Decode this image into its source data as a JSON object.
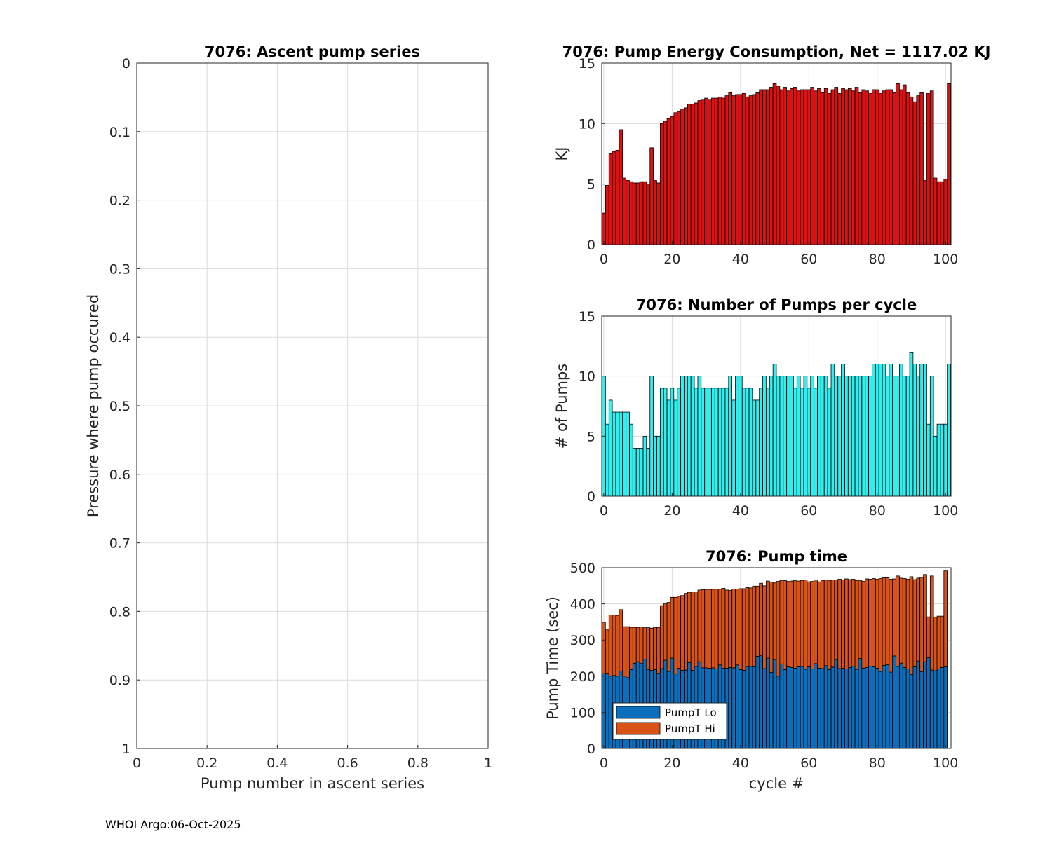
{
  "footer": "WHOI Argo:06-Oct-2025",
  "chart_data": [
    {
      "id": "ascent",
      "type": "line",
      "title": "7076: Ascent pump series",
      "xlabel": "Pump number in ascent series",
      "ylabel": "Pressure where pump occured",
      "xlim": [
        0,
        1
      ],
      "ylim": [
        0,
        1
      ],
      "yreversed": true,
      "xticks": [
        "0",
        "0.2",
        "0.4",
        "0.6",
        "0.8",
        "1"
      ],
      "yticks": [
        "0",
        "0.1",
        "0.2",
        "0.3",
        "0.4",
        "0.5",
        "0.6",
        "0.7",
        "0.8",
        "0.9",
        "1"
      ],
      "grid": true,
      "series": []
    },
    {
      "id": "energy",
      "type": "bar",
      "title": "7076: Pump Energy Consumption,  Net = 1117.02 KJ",
      "xlabel": "",
      "ylabel": "KJ",
      "xlim": [
        -0.6,
        101.6
      ],
      "ylim": [
        0,
        15
      ],
      "xticks": [
        "0",
        "20",
        "40",
        "60",
        "80",
        "100"
      ],
      "yticks": [
        "0",
        "5",
        "10",
        "15"
      ],
      "color": "#dd1111",
      "grid": true,
      "x_start": 0,
      "values": [
        2.6,
        4.9,
        7.5,
        7.7,
        7.8,
        9.5,
        5.5,
        5.3,
        5.2,
        5.1,
        5.1,
        5.2,
        5.2,
        5.0,
        8.0,
        5.3,
        5.1,
        10.0,
        10.2,
        10.4,
        10.6,
        10.9,
        11.0,
        11.2,
        11.3,
        11.6,
        11.6,
        11.7,
        11.9,
        12.0,
        12.1,
        12.0,
        12.1,
        12.1,
        12.2,
        12.1,
        12.3,
        12.6,
        12.3,
        12.4,
        12.4,
        12.5,
        12.2,
        12.3,
        12.4,
        12.6,
        12.8,
        12.8,
        12.8,
        13.0,
        13.3,
        13.1,
        12.8,
        13.0,
        12.7,
        12.9,
        13.0,
        12.7,
        12.8,
        12.8,
        12.8,
        13.0,
        12.7,
        12.9,
        12.6,
        12.9,
        12.5,
        12.8,
        13.0,
        12.5,
        12.9,
        12.8,
        12.9,
        12.7,
        13.0,
        12.6,
        12.8,
        12.7,
        12.5,
        12.8,
        12.8,
        12.5,
        12.7,
        12.8,
        12.8,
        12.6,
        13.3,
        12.8,
        13.2,
        12.6,
        12.2,
        11.8,
        12.3,
        12.6,
        5.3,
        12.5,
        12.7,
        5.5,
        5.2,
        5.2,
        5.4,
        13.3
      ]
    },
    {
      "id": "pumps",
      "type": "bar",
      "title": "7076: Number of Pumps per cycle",
      "xlabel": "",
      "ylabel": "# of Pumps",
      "xlim": [
        -0.6,
        101.6
      ],
      "ylim": [
        0,
        15
      ],
      "xticks": [
        "0",
        "20",
        "40",
        "60",
        "80",
        "100"
      ],
      "yticks": [
        "0",
        "5",
        "10",
        "15"
      ],
      "color": "#33eeee",
      "grid": true,
      "x_start": 0,
      "values": [
        10,
        6,
        8,
        7,
        7,
        7,
        7,
        7,
        6,
        4,
        4,
        4,
        5,
        4,
        10,
        5,
        5,
        9,
        9,
        8,
        9,
        8,
        9,
        10,
        10,
        10,
        10,
        9,
        10,
        9,
        9,
        9,
        9,
        9,
        9,
        9,
        9,
        10,
        8,
        10,
        10,
        9,
        9,
        9,
        8,
        8,
        9,
        10,
        9,
        10,
        11,
        10,
        10,
        10,
        10,
        10,
        9,
        10,
        9,
        10,
        9,
        10,
        9,
        10,
        10,
        10,
        9,
        11,
        10,
        10,
        11,
        10,
        10,
        10,
        10,
        10,
        10,
        10,
        10,
        11,
        11,
        11,
        11,
        10,
        11,
        10,
        10,
        11,
        10,
        10,
        12,
        11,
        10,
        11,
        11,
        6,
        10,
        5,
        6,
        6,
        6,
        11
      ]
    },
    {
      "id": "pumptime",
      "type": "bar",
      "stacked": true,
      "title": "7076: Pump time",
      "xlabel": "cycle #",
      "ylabel": "Pump Time (sec)",
      "xlim": [
        -0.6,
        101.6
      ],
      "ylim": [
        0,
        500
      ],
      "xticks": [
        "0",
        "20",
        "40",
        "60",
        "80",
        "100"
      ],
      "yticks": [
        "0",
        "100",
        "200",
        "300",
        "400",
        "500"
      ],
      "grid": true,
      "legend_position": "bottom-left",
      "x_start": 0,
      "series": [
        {
          "name": "PumpT Lo",
          "color": "#0b6fbd",
          "values": [
            207,
            208,
            200,
            202,
            200,
            214,
            200,
            196,
            218,
            236,
            240,
            235,
            247,
            219,
            216,
            218,
            208,
            221,
            244,
            213,
            250,
            206,
            222,
            216,
            217,
            238,
            216,
            227,
            240,
            223,
            223,
            222,
            223,
            220,
            231,
            222,
            222,
            224,
            223,
            231,
            218,
            216,
            227,
            227,
            226,
            255,
            257,
            221,
            250,
            210,
            246,
            200,
            234,
            218,
            226,
            224,
            222,
            226,
            227,
            219,
            226,
            220,
            235,
            222,
            221,
            229,
            218,
            225,
            246,
            221,
            222,
            220,
            224,
            228,
            219,
            249,
            222,
            224,
            228,
            226,
            222,
            213,
            230,
            232,
            211,
            256,
            227,
            236,
            224,
            220,
            205,
            226,
            242,
            212,
            240,
            251,
            217,
            215,
            220,
            224,
            226
          ]
        },
        {
          "name": "PumpT Hi",
          "color": "#d95319",
          "values": [
            142,
            120,
            169,
            167,
            168,
            170,
            137,
            141,
            117,
            99,
            95,
            101,
            87,
            115,
            117,
            117,
            127,
            174,
            156,
            191,
            168,
            212,
            199,
            207,
            212,
            194,
            217,
            206,
            198,
            216,
            217,
            218,
            217,
            221,
            210,
            221,
            216,
            213,
            218,
            210,
            224,
            226,
            218,
            217,
            223,
            194,
            200,
            229,
            213,
            250,
            212,
            262,
            231,
            246,
            236,
            239,
            242,
            237,
            238,
            247,
            235,
            242,
            231,
            239,
            244,
            237,
            247,
            241,
            220,
            247,
            244,
            249,
            243,
            240,
            246,
            216,
            240,
            245,
            240,
            244,
            246,
            257,
            242,
            240,
            257,
            213,
            250,
            235,
            246,
            248,
            270,
            241,
            229,
            261,
            241,
            113,
            260,
            148,
            146,
            142,
            265
          ]
        }
      ]
    }
  ]
}
